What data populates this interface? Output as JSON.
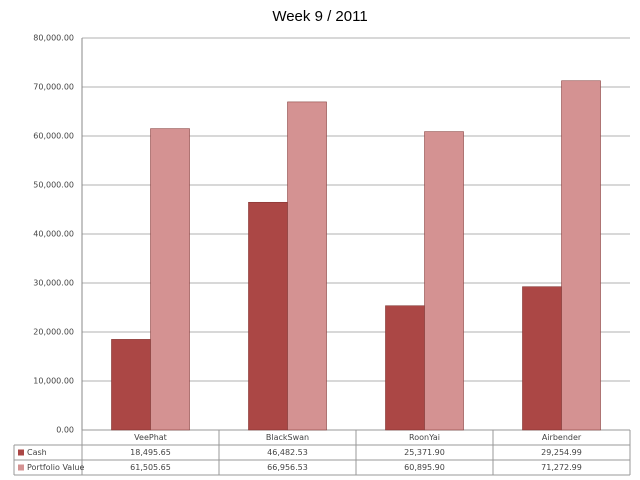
{
  "chart_data": {
    "type": "bar",
    "title": "Week 9 / 2011",
    "categories": [
      "VeePhat",
      "BlackSwan",
      "RoonYai",
      "Airbender"
    ],
    "series": [
      {
        "name": "Cash",
        "color": "#ab4745",
        "values": [
          18495.65,
          46482.53,
          25371.9,
          29254.99
        ],
        "value_labels": [
          "18,495.65",
          "46,482.53",
          "25,371.90",
          "29,254.99"
        ]
      },
      {
        "name": "Portfolio Value",
        "color": "#d49292",
        "values": [
          61505.65,
          66956.53,
          60895.9,
          71272.99
        ],
        "value_labels": [
          "61,505.65",
          "66,956.53",
          "60,895.90",
          "71,272.99"
        ]
      }
    ],
    "ylim": [
      0,
      80000
    ],
    "yticks": [
      {
        "value": 0,
        "label": "0.00"
      },
      {
        "value": 10000,
        "label": "10,000.00"
      },
      {
        "value": 20000,
        "label": "20,000.00"
      },
      {
        "value": 30000,
        "label": "30,000.00"
      },
      {
        "value": 40000,
        "label": "40,000.00"
      },
      {
        "value": 50000,
        "label": "50,000.00"
      },
      {
        "value": 60000,
        "label": "60,000.00"
      },
      {
        "value": 70000,
        "label": "70,000.00"
      },
      {
        "value": 80000,
        "label": "80,000.00"
      }
    ],
    "grid": true
  }
}
